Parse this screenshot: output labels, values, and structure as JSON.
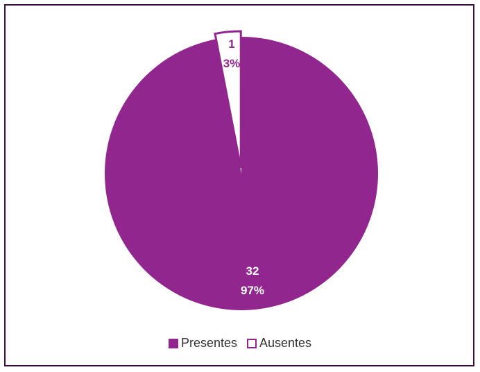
{
  "chart_data": {
    "type": "pie",
    "categories": [
      "Presentes",
      "Ausentes"
    ],
    "values": [
      32,
      1
    ],
    "percent_labels": [
      "97%",
      "3%"
    ],
    "value_labels": [
      "32",
      "1"
    ],
    "colors": [
      "#91268e",
      "#ffffff"
    ],
    "outline_color": "#91268e",
    "exploded": [
      false,
      true
    ],
    "legend_position": "bottom",
    "title": ""
  }
}
